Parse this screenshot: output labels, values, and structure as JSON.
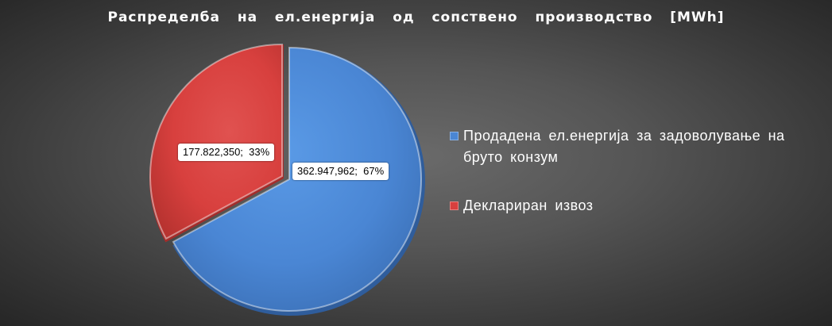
{
  "chart_data": {
    "type": "pie",
    "title": "Распределба  на  ел.енергија  од  сопствено  производство  [MWh]",
    "series": [
      {
        "name": "Продадена ел.енергија за задоволување на бруто конзум",
        "value": 362947.962,
        "value_label": "362.947,962",
        "percent": 67,
        "percent_label": "67%",
        "data_label": "362.947,962;  67%",
        "color": "#4a86d4"
      },
      {
        "name": "Деклариран извоз",
        "value": 177822.35,
        "value_label": "177.822,350",
        "percent": 33,
        "percent_label": "33%",
        "data_label": "177.822,350;  33%",
        "color": "#d8403e"
      }
    ],
    "legend_position": "right"
  },
  "colors": {
    "background_center": "#6a6a6a",
    "background_edge": "#262626",
    "title_text": "#ffffff",
    "legend_text": "#ffffff"
  }
}
